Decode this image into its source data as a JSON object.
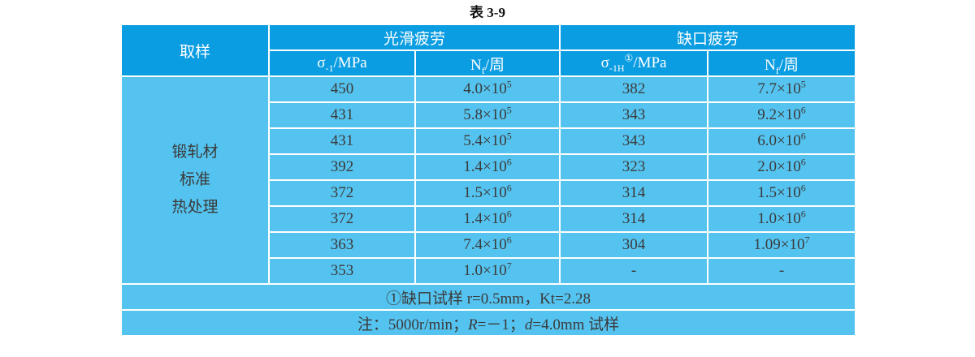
{
  "title": "表 3-9",
  "header": {
    "sample": "取样",
    "smooth": "光滑疲劳",
    "notch": "缺口疲劳",
    "columns": [
      [
        {
          "text": "σ"
        },
        {
          "sub": "-1"
        },
        {
          "text": "/MPa"
        }
      ],
      [
        {
          "text": "N"
        },
        {
          "sub": "f"
        },
        {
          "text": "/周"
        }
      ],
      [
        {
          "text": "σ"
        },
        {
          "sub": "-1H"
        },
        {
          "sup": "①"
        },
        {
          "text": "/MPa"
        }
      ],
      [
        {
          "text": "N"
        },
        {
          "sub": "f"
        },
        {
          "text": "/周"
        }
      ]
    ]
  },
  "table": {
    "sample_lines": [
      "锻轧材",
      "标准",
      "热处理"
    ],
    "rows": [
      {
        "smooth_stress": 450,
        "smooth_cycles": [
          {
            "text": "4.0×10"
          },
          {
            "sup": "5"
          }
        ],
        "notch_stress": 382,
        "notch_cycles": [
          {
            "text": "7.7×10"
          },
          {
            "sup": "5"
          }
        ]
      },
      {
        "smooth_stress": 431,
        "smooth_cycles": [
          {
            "text": "5.8×10"
          },
          {
            "sup": "5"
          }
        ],
        "notch_stress": 343,
        "notch_cycles": [
          {
            "text": "9.2×10"
          },
          {
            "sup": "6"
          }
        ]
      },
      {
        "smooth_stress": 431,
        "smooth_cycles": [
          {
            "text": "5.4×10"
          },
          {
            "sup": "5"
          }
        ],
        "notch_stress": 343,
        "notch_cycles": [
          {
            "text": "6.0×10"
          },
          {
            "sup": "6"
          }
        ]
      },
      {
        "smooth_stress": 392,
        "smooth_cycles": [
          {
            "text": "1.4×10"
          },
          {
            "sup": "6"
          }
        ],
        "notch_stress": 323,
        "notch_cycles": [
          {
            "text": "2.0×10"
          },
          {
            "sup": "6"
          }
        ]
      },
      {
        "smooth_stress": 372,
        "smooth_cycles": [
          {
            "text": "1.5×10"
          },
          {
            "sup": "6"
          }
        ],
        "notch_stress": 314,
        "notch_cycles": [
          {
            "text": "1.5×10"
          },
          {
            "sup": "6"
          }
        ]
      },
      {
        "smooth_stress": 372,
        "smooth_cycles": [
          {
            "text": "1.4×10"
          },
          {
            "sup": "6"
          }
        ],
        "notch_stress": 314,
        "notch_cycles": [
          {
            "text": "1.0×10"
          },
          {
            "sup": "6"
          }
        ]
      },
      {
        "smooth_stress": 363,
        "smooth_cycles": [
          {
            "text": "7.4×10"
          },
          {
            "sup": "6"
          }
        ],
        "notch_stress": 304,
        "notch_cycles": [
          {
            "text": "1.09×10"
          },
          {
            "sup": "7"
          }
        ]
      },
      {
        "smooth_stress": 353,
        "smooth_cycles": [
          {
            "text": "1.0×10"
          },
          {
            "sup": "7"
          }
        ],
        "notch_stress": "-",
        "notch_cycles": [
          {
            "text": "-"
          }
        ]
      }
    ],
    "footnotes": [
      [
        {
          "text": "①缺口试样 r=0.5mm，Kt=2.28"
        }
      ],
      [
        {
          "text": "注：5000r/min；"
        },
        {
          "italic": "R"
        },
        {
          "text": "=－1；"
        },
        {
          "italic": "d"
        },
        {
          "text": "=4.0mm 试样"
        }
      ]
    ]
  }
}
